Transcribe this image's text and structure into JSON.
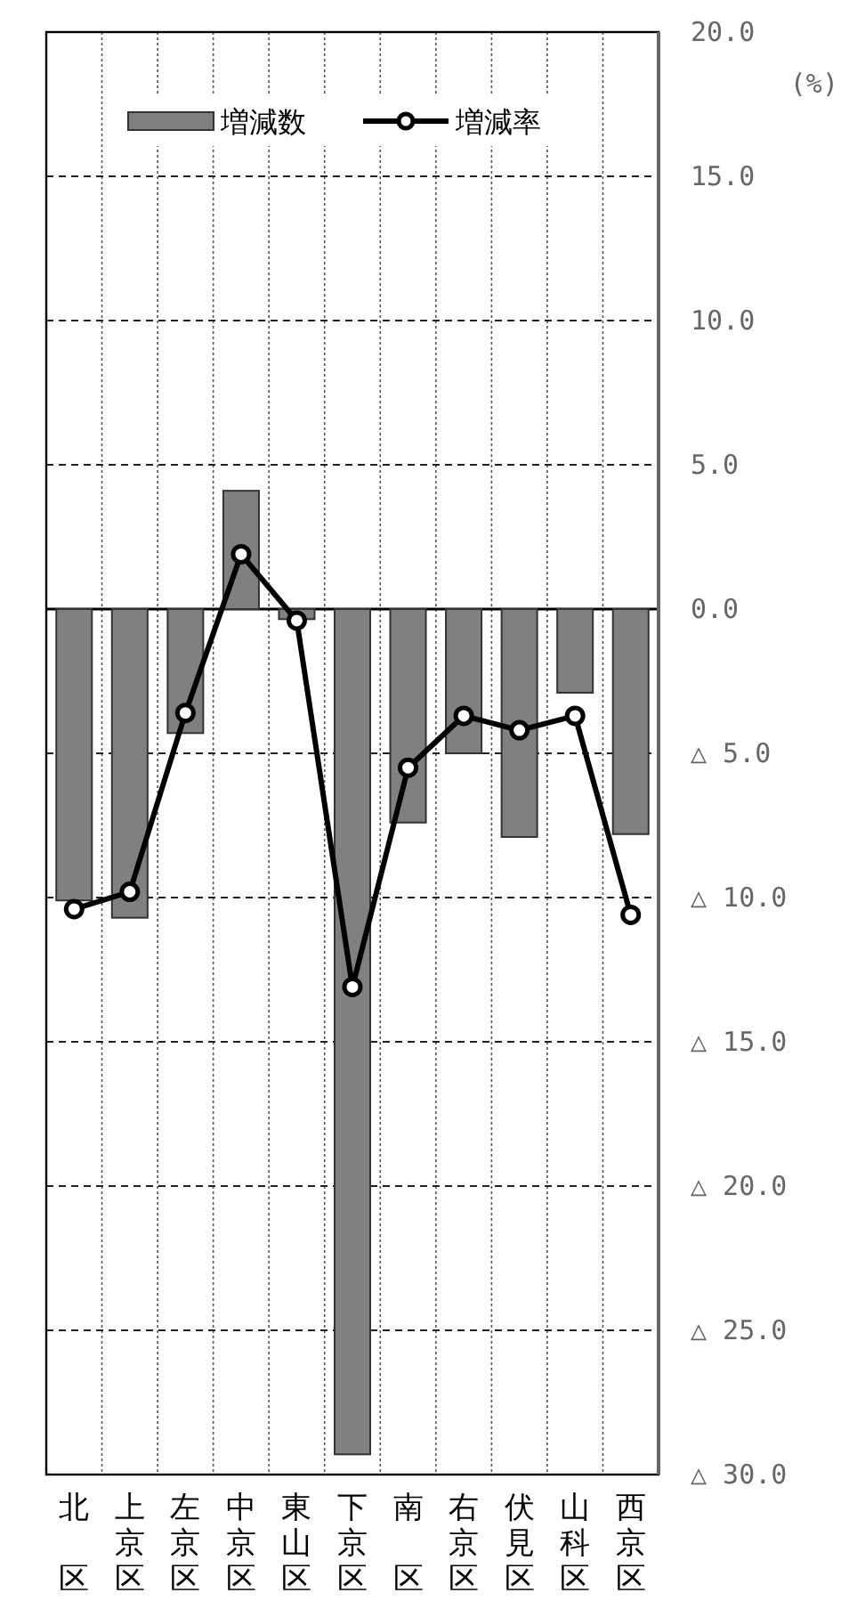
{
  "chart_data": {
    "type": "bar",
    "ylabel": "(%)",
    "categories": [
      "北区",
      "上京区",
      "左京区",
      "中京区",
      "東山区",
      "下京区",
      "南区",
      "右京区",
      "伏見区",
      "山科区",
      "西京区"
    ],
    "series": [
      {
        "name": "増減数",
        "color": "#808080",
        "values": [
          -10.1,
          -10.7,
          -4.3,
          4.1,
          -0.35,
          -29.3,
          -7.4,
          -5.0,
          -7.9,
          -2.9,
          -7.8
        ]
      },
      {
        "name": "増減率",
        "type": "line",
        "color": "#000000",
        "marker": "circle",
        "values": [
          -10.4,
          -9.8,
          -3.6,
          1.9,
          -0.4,
          -13.1,
          -5.5,
          -3.7,
          -4.2,
          -3.7,
          -10.6
        ]
      }
    ],
    "ylim": [
      -30,
      20
    ],
    "yticks": [
      {
        "value": 20,
        "label": "20.0"
      },
      {
        "value": 15,
        "label": "15.0"
      },
      {
        "value": 10,
        "label": "10.0"
      },
      {
        "value": 5,
        "label": "5.0"
      },
      {
        "value": 0,
        "label": "0.0"
      },
      {
        "value": -5,
        "label": "△ 5.0"
      },
      {
        "value": -10,
        "label": "△ 10.0"
      },
      {
        "value": -15,
        "label": "△ 15.0"
      },
      {
        "value": -20,
        "label": "△ 20.0"
      },
      {
        "value": -25,
        "label": "△ 25.0"
      },
      {
        "value": -30,
        "label": "△ 30.0"
      }
    ],
    "grid": true,
    "legend": "top"
  }
}
